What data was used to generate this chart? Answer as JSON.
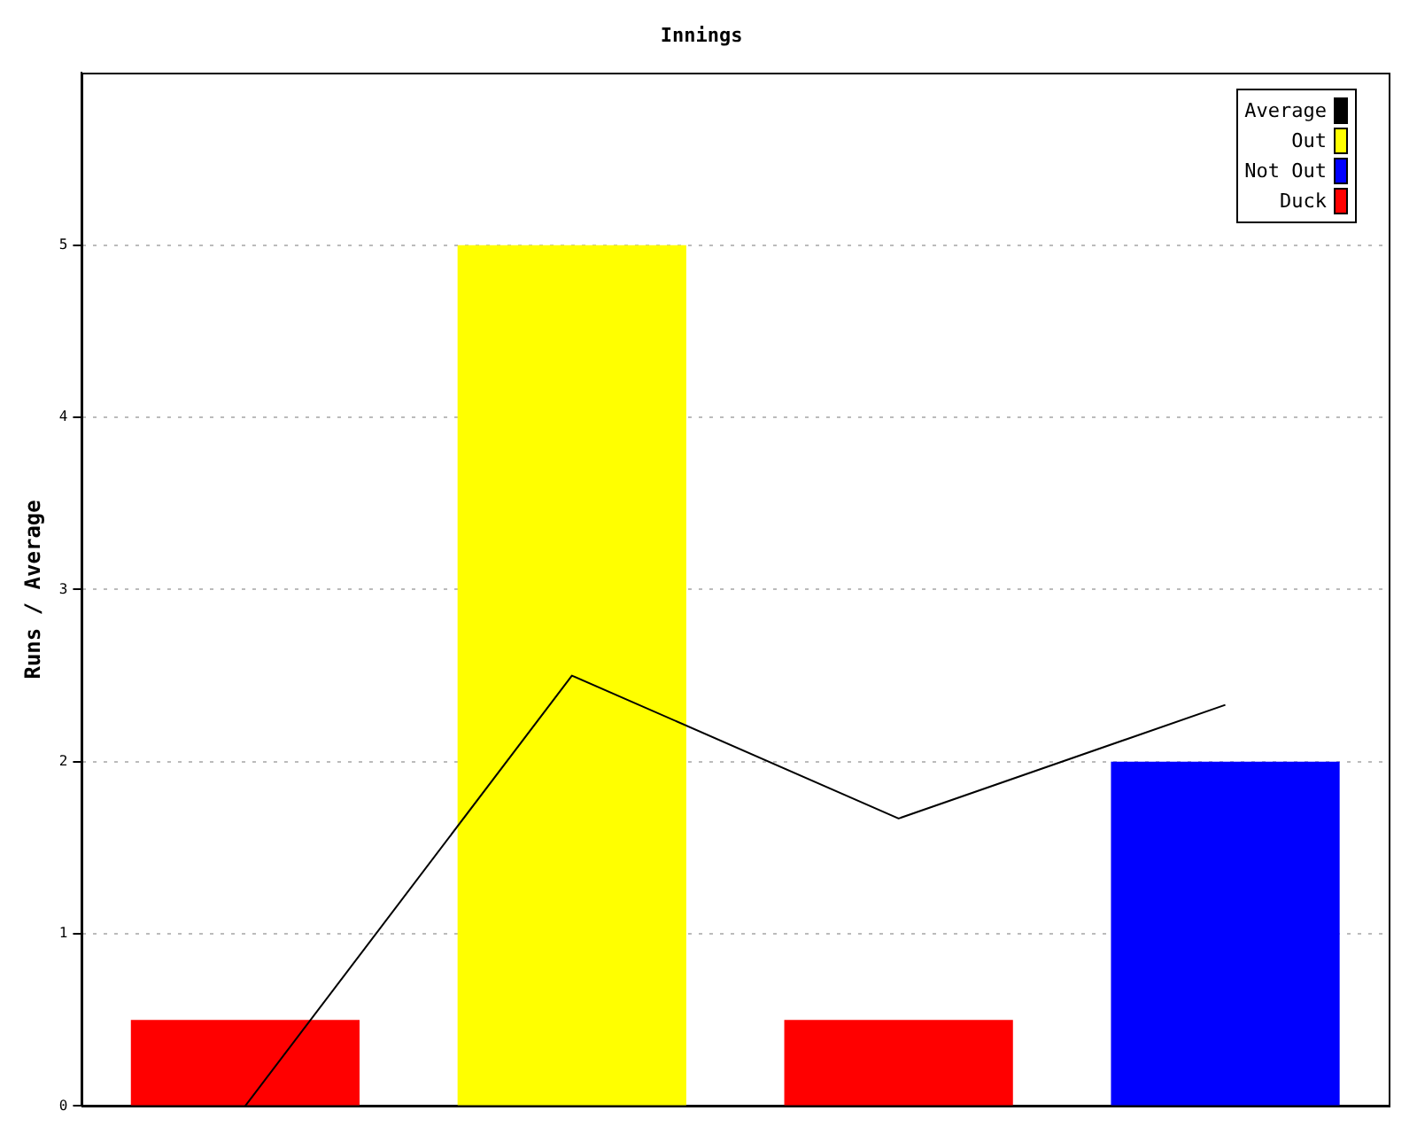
{
  "chart_data": {
    "type": "bar",
    "title": "Innings",
    "ylabel": "Runs / Average",
    "categories": [
      null,
      null,
      null,
      null
    ],
    "series": [
      {
        "name": "Average",
        "type": "line",
        "color": "#000000",
        "values": [
          0,
          2.5,
          1.67,
          2.33
        ]
      },
      {
        "name": "Out",
        "color": "#ffff00",
        "values": [
          null,
          5,
          null,
          null
        ]
      },
      {
        "name": "Not Out",
        "color": "#0000ff",
        "values": [
          null,
          null,
          null,
          2
        ]
      },
      {
        "name": "Duck",
        "color": "#ff0000",
        "values": [
          0.5,
          null,
          0.5,
          null
        ]
      }
    ],
    "ylim": [
      0,
      6
    ],
    "yticks": [
      0,
      1,
      2,
      3,
      4,
      5
    ],
    "grid": "y",
    "legend": "top right",
    "tick_labels": "y",
    "marker": "none"
  }
}
